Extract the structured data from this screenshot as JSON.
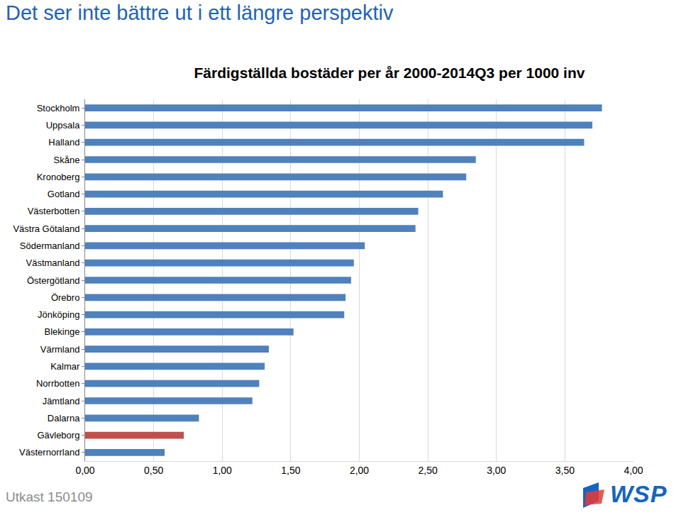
{
  "slide": {
    "heading": "Det ser inte bättre ut i ett längre perspektiv",
    "footer": "Utkast 150109",
    "logo": "WSP"
  },
  "chart_data": {
    "type": "bar",
    "orientation": "horizontal",
    "title": "Färdigställda bostäder per år 2000-2014Q3 per 1000 inv",
    "categories": [
      "Stockholm",
      "Uppsala",
      "Halland",
      "Skåne",
      "Kronoberg",
      "Gotland",
      "Västerbotten",
      "Västra Götaland",
      "Södermanland",
      "Västmanland",
      "Östergötland",
      "Örebro",
      "Jönköping",
      "Blekinge",
      "Värmland",
      "Kalmar",
      "Norrbotten",
      "Jämtland",
      "Dalarna",
      "Gävleborg",
      "Västernorrland"
    ],
    "values": [
      3.77,
      3.7,
      3.64,
      2.85,
      2.78,
      2.61,
      2.43,
      2.41,
      2.04,
      1.96,
      1.94,
      1.9,
      1.89,
      1.52,
      1.34,
      1.31,
      1.27,
      1.22,
      0.83,
      0.72,
      0.58
    ],
    "colors": [
      "#4f81bd",
      "#4f81bd",
      "#4f81bd",
      "#4f81bd",
      "#4f81bd",
      "#4f81bd",
      "#4f81bd",
      "#4f81bd",
      "#4f81bd",
      "#4f81bd",
      "#4f81bd",
      "#4f81bd",
      "#4f81bd",
      "#4f81bd",
      "#4f81bd",
      "#4f81bd",
      "#4f81bd",
      "#4f81bd",
      "#4f81bd",
      "#c0504d",
      "#4f81bd"
    ],
    "xlim": [
      0,
      4
    ],
    "xticks": [
      {
        "value": 0,
        "label": "0,00"
      },
      {
        "value": 0.5,
        "label": "0,50"
      },
      {
        "value": 1,
        "label": "1,00"
      },
      {
        "value": 1.5,
        "label": "1,50"
      },
      {
        "value": 2,
        "label": "2,00"
      },
      {
        "value": 2.5,
        "label": "2,50"
      },
      {
        "value": 3,
        "label": "3,00"
      },
      {
        "value": 3.5,
        "label": "3,50"
      },
      {
        "value": 4,
        "label": "4,00"
      }
    ],
    "grid": true
  }
}
